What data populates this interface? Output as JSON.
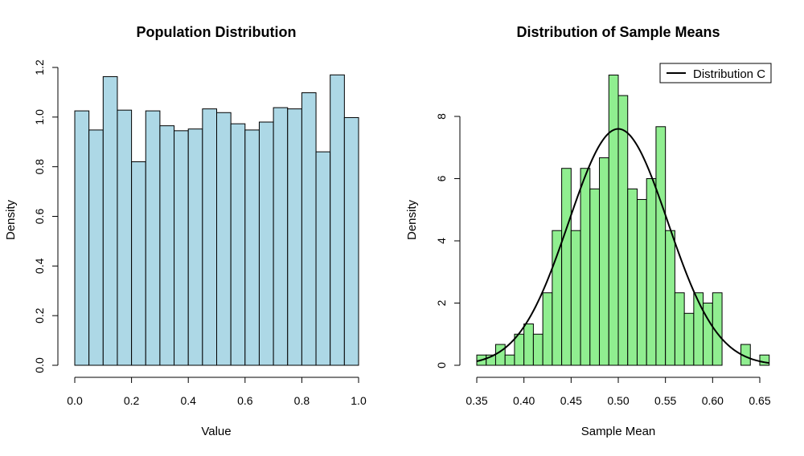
{
  "chart_data": [
    {
      "type": "bar",
      "title": "Population Distribution",
      "xlabel": "Value",
      "ylabel": "Density",
      "bar_color": "#ADD8E6",
      "bin_width": 0.05,
      "bin_start": 0.0,
      "values": [
        1.025,
        0.948,
        1.163,
        1.028,
        0.82,
        1.025,
        0.965,
        0.945,
        0.952,
        1.033,
        1.018,
        0.973,
        0.948,
        0.98,
        1.038,
        1.033,
        1.098,
        0.86,
        1.17,
        0.998
      ],
      "xlim": [
        0.0,
        1.0
      ],
      "ylim": [
        0.0,
        1.2
      ],
      "xticks": [
        "0.0",
        "0.2",
        "0.4",
        "0.6",
        "0.8",
        "1.0"
      ],
      "xtick_values": [
        0.0,
        0.2,
        0.4,
        0.6,
        0.8,
        1.0
      ],
      "yticks": [
        "0.0",
        "0.2",
        "0.4",
        "0.6",
        "0.8",
        "1.0",
        "1.2"
      ],
      "ytick_values": [
        0.0,
        0.2,
        0.4,
        0.6,
        0.8,
        1.0,
        1.2
      ],
      "grid": false
    },
    {
      "type": "bar",
      "title": "Distribution of Sample Means",
      "xlabel": "Sample Mean",
      "ylabel": "Density",
      "bar_color": "#90EE90",
      "bin_width": 0.01,
      "bin_start": 0.35,
      "values": [
        0.33,
        0.33,
        0.67,
        0.33,
        1.0,
        1.33,
        1.0,
        2.33,
        4.33,
        6.33,
        4.33,
        6.33,
        5.67,
        6.67,
        9.33,
        8.67,
        5.67,
        5.33,
        6.0,
        7.67,
        4.33,
        2.33,
        1.67,
        2.33,
        2.0,
        2.33,
        0,
        0,
        0.67,
        0,
        0.33
      ],
      "xlim": [
        0.35,
        0.66
      ],
      "ylim": [
        0,
        9.5
      ],
      "xticks": [
        "0.35",
        "0.40",
        "0.45",
        "0.50",
        "0.55",
        "0.60",
        "0.65"
      ],
      "xtick_values": [
        0.35,
        0.4,
        0.45,
        0.5,
        0.55,
        0.6,
        0.65
      ],
      "yticks": [
        "0",
        "2",
        "4",
        "6",
        "8"
      ],
      "ytick_values": [
        0,
        2,
        4,
        6,
        8
      ],
      "curve": {
        "type": "normal",
        "mean": 0.5,
        "sd": 0.0525,
        "color": "#000000"
      },
      "legend": {
        "entries": [
          "Distribution C"
        ],
        "placement": "top-right"
      },
      "grid": false
    }
  ]
}
